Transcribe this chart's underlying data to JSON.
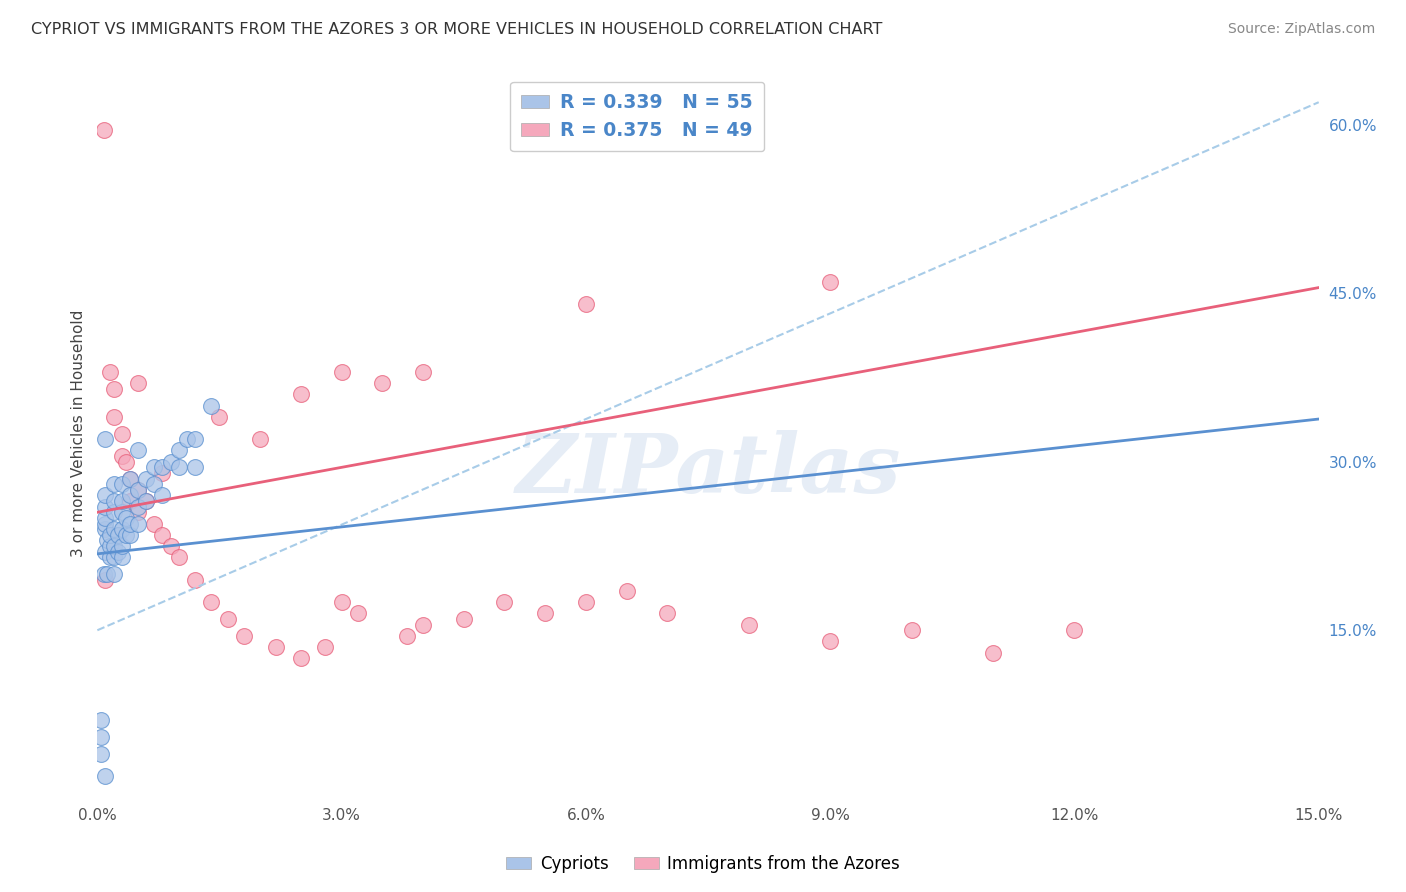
{
  "title": "CYPRIOT VS IMMIGRANTS FROM THE AZORES 3 OR MORE VEHICLES IN HOUSEHOLD CORRELATION CHART",
  "source": "Source: ZipAtlas.com",
  "ylabel": "3 or more Vehicles in Household",
  "xlim": [
    0.0,
    0.15
  ],
  "ylim": [
    0.0,
    0.65
  ],
  "xticks": [
    0.0,
    0.03,
    0.06,
    0.09,
    0.12,
    0.15
  ],
  "xticklabels": [
    "0.0%",
    "3.0%",
    "6.0%",
    "9.0%",
    "12.0%",
    "15.0%"
  ],
  "yticks_right": [
    0.15,
    0.3,
    0.45,
    0.6
  ],
  "yticklabels_right": [
    "15.0%",
    "30.0%",
    "45.0%",
    "60.0%"
  ],
  "legend_label1": "Cypriots",
  "legend_label2": "Immigrants from the Azores",
  "R1": "0.339",
  "N1": "55",
  "R2": "0.375",
  "N2": "49",
  "color_blue": "#aac4e8",
  "color_pink": "#f5a8bc",
  "line_blue": "#5a90d0",
  "line_pink": "#e8607a",
  "line_dash_color": "#a8cce8",
  "background_color": "#ffffff",
  "grid_color": "#d8d8d8",
  "watermark": "ZIPatlas",
  "cypriot_x": [
    0.0005,
    0.0005,
    0.0005,
    0.0008,
    0.001,
    0.001,
    0.001,
    0.001,
    0.001,
    0.001,
    0.0012,
    0.0012,
    0.0015,
    0.0015,
    0.0015,
    0.002,
    0.002,
    0.002,
    0.002,
    0.002,
    0.002,
    0.002,
    0.0025,
    0.0025,
    0.003,
    0.003,
    0.003,
    0.003,
    0.003,
    0.003,
    0.0035,
    0.0035,
    0.004,
    0.004,
    0.004,
    0.004,
    0.005,
    0.005,
    0.005,
    0.005,
    0.006,
    0.006,
    0.007,
    0.007,
    0.008,
    0.008,
    0.009,
    0.01,
    0.01,
    0.011,
    0.012,
    0.012,
    0.014,
    0.001,
    0.001
  ],
  "cypriot_y": [
    0.07,
    0.04,
    0.055,
    0.2,
    0.22,
    0.24,
    0.245,
    0.25,
    0.26,
    0.27,
    0.2,
    0.23,
    0.215,
    0.225,
    0.235,
    0.2,
    0.215,
    0.225,
    0.24,
    0.255,
    0.265,
    0.28,
    0.22,
    0.235,
    0.215,
    0.225,
    0.24,
    0.255,
    0.265,
    0.28,
    0.235,
    0.25,
    0.235,
    0.245,
    0.27,
    0.285,
    0.245,
    0.26,
    0.275,
    0.31,
    0.265,
    0.285,
    0.28,
    0.295,
    0.27,
    0.295,
    0.3,
    0.295,
    0.31,
    0.32,
    0.295,
    0.32,
    0.35,
    0.32,
    0.02
  ],
  "azores_x": [
    0.0008,
    0.001,
    0.0015,
    0.002,
    0.002,
    0.003,
    0.003,
    0.0035,
    0.004,
    0.004,
    0.005,
    0.005,
    0.006,
    0.007,
    0.008,
    0.009,
    0.01,
    0.012,
    0.014,
    0.016,
    0.018,
    0.022,
    0.025,
    0.028,
    0.03,
    0.032,
    0.038,
    0.04,
    0.045,
    0.05,
    0.055,
    0.06,
    0.065,
    0.07,
    0.08,
    0.09,
    0.1,
    0.11,
    0.12,
    0.005,
    0.008,
    0.015,
    0.02,
    0.025,
    0.03,
    0.035,
    0.04,
    0.06,
    0.09
  ],
  "azores_y": [
    0.595,
    0.195,
    0.38,
    0.365,
    0.34,
    0.325,
    0.305,
    0.3,
    0.285,
    0.265,
    0.255,
    0.275,
    0.265,
    0.245,
    0.235,
    0.225,
    0.215,
    0.195,
    0.175,
    0.16,
    0.145,
    0.135,
    0.125,
    0.135,
    0.175,
    0.165,
    0.145,
    0.155,
    0.16,
    0.175,
    0.165,
    0.175,
    0.185,
    0.165,
    0.155,
    0.14,
    0.15,
    0.13,
    0.15,
    0.37,
    0.29,
    0.34,
    0.32,
    0.36,
    0.38,
    0.37,
    0.38,
    0.44,
    0.46
  ],
  "cyp_line_x": [
    0.0,
    0.15
  ],
  "cyp_line_y": [
    0.218,
    0.338
  ],
  "az_line_x": [
    0.0,
    0.15
  ],
  "az_line_y": [
    0.255,
    0.455
  ],
  "diag_line_x": [
    0.0,
    0.15
  ],
  "diag_line_y": [
    0.15,
    0.62
  ]
}
